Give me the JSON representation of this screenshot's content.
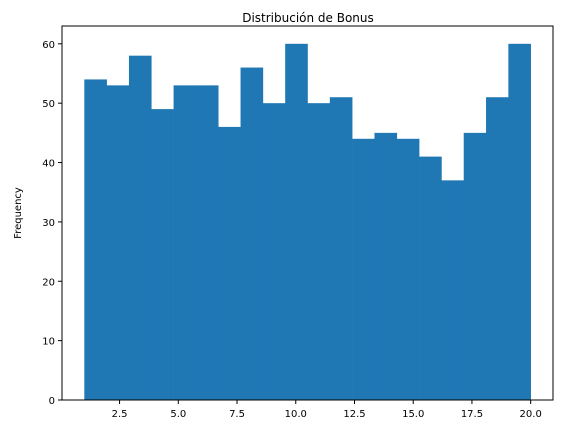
{
  "chart_data": {
    "type": "bar",
    "title": "Distribución de Bonus",
    "xlabel": "",
    "ylabel": "Frequency",
    "bin_edges": [
      1.0,
      1.95,
      2.9,
      3.85,
      4.8,
      5.75,
      6.7,
      7.65,
      8.6,
      9.55,
      10.5,
      11.45,
      12.4,
      13.35,
      14.3,
      15.25,
      16.2,
      17.15,
      18.1,
      19.05,
      20.0
    ],
    "values": [
      54,
      53,
      58,
      49,
      53,
      53,
      46,
      56,
      50,
      60,
      50,
      51,
      44,
      45,
      44,
      41,
      37,
      45,
      51,
      60
    ],
    "xlim": [
      0.05,
      20.95
    ],
    "ylim": [
      0,
      63
    ],
    "xticks": [
      2.5,
      5.0,
      7.5,
      10.0,
      12.5,
      15.0,
      17.5,
      20.0
    ],
    "xtick_labels": [
      "2.5",
      "5.0",
      "7.5",
      "10.0",
      "12.5",
      "15.0",
      "17.5",
      "20.0"
    ],
    "yticks": [
      0,
      10,
      20,
      30,
      40,
      50,
      60
    ],
    "ytick_labels": [
      "0",
      "10",
      "20",
      "30",
      "40",
      "50",
      "60"
    ],
    "grid": false,
    "bar_color": "#1f77b4"
  }
}
